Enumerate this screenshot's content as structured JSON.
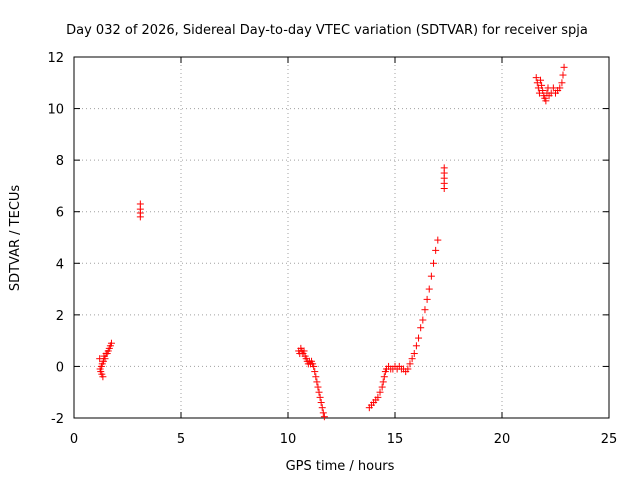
{
  "chart_data": {
    "type": "scatter",
    "title": "Day 032 of 2026, Sidereal Day-to-day VTEC variation (SDTVAR) for receiver spja",
    "xlabel": "GPS time / hours",
    "ylabel": "SDTVAR / TECUs",
    "xlim": [
      0,
      25
    ],
    "ylim": [
      -2,
      12
    ],
    "xticks": [
      "0",
      "5",
      "10",
      "15",
      "20",
      "25"
    ],
    "yticks": [
      "-2",
      "0",
      "2",
      "4",
      "6",
      "8",
      "10",
      "12"
    ],
    "grid": true,
    "marker": "plus",
    "marker_color": "#ff0000",
    "series": [
      {
        "points": [
          [
            1.2,
            0.3
          ],
          [
            1.22,
            -0.1
          ],
          [
            1.25,
            -0.2
          ],
          [
            1.28,
            0.0
          ],
          [
            1.3,
            -0.3
          ],
          [
            1.32,
            0.1
          ],
          [
            1.35,
            -0.4
          ],
          [
            1.38,
            0.2
          ],
          [
            1.4,
            0.4
          ],
          [
            1.45,
            0.3
          ],
          [
            1.5,
            0.5
          ],
          [
            1.55,
            0.5
          ],
          [
            1.6,
            0.6
          ],
          [
            1.65,
            0.7
          ],
          [
            1.7,
            0.8
          ],
          [
            1.75,
            0.9
          ],
          [
            3.1,
            6.3
          ],
          [
            3.1,
            6.1
          ],
          [
            3.1,
            5.95
          ],
          [
            3.1,
            5.8
          ],
          [
            10.5,
            0.6
          ],
          [
            10.55,
            0.5
          ],
          [
            10.6,
            0.7
          ],
          [
            10.65,
            0.6
          ],
          [
            10.7,
            0.5
          ],
          [
            10.75,
            0.6
          ],
          [
            10.8,
            0.4
          ],
          [
            10.85,
            0.3
          ],
          [
            10.9,
            0.2
          ],
          [
            10.95,
            0.1
          ],
          [
            11.0,
            0.2
          ],
          [
            11.05,
            0.1
          ],
          [
            11.1,
            0.2
          ],
          [
            11.15,
            0.1
          ],
          [
            11.2,
            0.0
          ],
          [
            11.25,
            -0.2
          ],
          [
            11.3,
            -0.4
          ],
          [
            11.35,
            -0.6
          ],
          [
            11.4,
            -0.8
          ],
          [
            11.45,
            -1.0
          ],
          [
            11.5,
            -1.2
          ],
          [
            11.55,
            -1.4
          ],
          [
            11.6,
            -1.6
          ],
          [
            11.65,
            -1.8
          ],
          [
            11.7,
            -1.95
          ],
          [
            13.8,
            -1.6
          ],
          [
            13.9,
            -1.5
          ],
          [
            14.0,
            -1.4
          ],
          [
            14.1,
            -1.3
          ],
          [
            14.2,
            -1.2
          ],
          [
            14.3,
            -1.0
          ],
          [
            14.4,
            -0.8
          ],
          [
            14.45,
            -0.6
          ],
          [
            14.5,
            -0.4
          ],
          [
            14.55,
            -0.2
          ],
          [
            14.6,
            -0.1
          ],
          [
            14.7,
            0.0
          ],
          [
            14.8,
            -0.1
          ],
          [
            14.9,
            -0.1
          ],
          [
            15.0,
            0.0
          ],
          [
            15.1,
            -0.1
          ],
          [
            15.2,
            0.0
          ],
          [
            15.3,
            -0.1
          ],
          [
            15.4,
            -0.1
          ],
          [
            15.5,
            -0.2
          ],
          [
            15.6,
            -0.1
          ],
          [
            15.7,
            0.1
          ],
          [
            15.8,
            0.3
          ],
          [
            15.9,
            0.5
          ],
          [
            16.0,
            0.8
          ],
          [
            16.1,
            1.1
          ],
          [
            16.2,
            1.5
          ],
          [
            16.3,
            1.8
          ],
          [
            16.4,
            2.2
          ],
          [
            16.5,
            2.6
          ],
          [
            16.6,
            3.0
          ],
          [
            16.7,
            3.5
          ],
          [
            16.8,
            4.0
          ],
          [
            16.9,
            4.5
          ],
          [
            17.0,
            4.9
          ],
          [
            17.3,
            7.7
          ],
          [
            17.3,
            7.5
          ],
          [
            17.3,
            7.3
          ],
          [
            17.3,
            7.1
          ],
          [
            17.3,
            6.9
          ],
          [
            21.6,
            11.2
          ],
          [
            21.65,
            11.0
          ],
          [
            21.7,
            10.8
          ],
          [
            21.75,
            10.6
          ],
          [
            21.8,
            11.1
          ],
          [
            21.85,
            10.9
          ],
          [
            21.9,
            10.7
          ],
          [
            21.95,
            10.5
          ],
          [
            22.0,
            10.4
          ],
          [
            22.05,
            10.3
          ],
          [
            22.1,
            10.6
          ],
          [
            22.15,
            10.8
          ],
          [
            22.2,
            10.5
          ],
          [
            22.3,
            10.6
          ],
          [
            22.4,
            10.8
          ],
          [
            22.5,
            10.6
          ],
          [
            22.6,
            10.7
          ],
          [
            22.7,
            10.8
          ],
          [
            22.8,
            11.0
          ],
          [
            22.85,
            11.3
          ],
          [
            22.9,
            11.6
          ]
        ]
      }
    ]
  }
}
